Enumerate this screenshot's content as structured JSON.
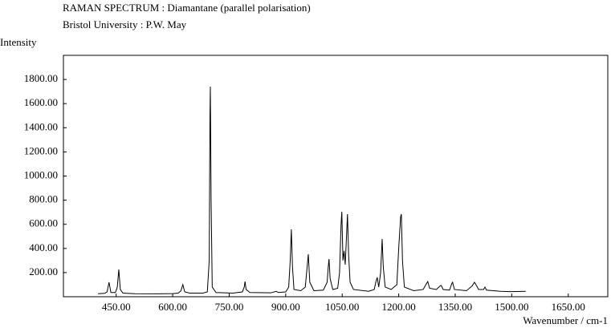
{
  "chart_data": {
    "type": "line",
    "title": "RAMAN SPECTRUM : Diamantane (parallel polarisation)",
    "subtitle": "Bristol University : P.W. May",
    "y_label": "Intensity",
    "x_label": "Wavenumber / cm-1",
    "xlim": [
      310,
      1755
    ],
    "ylim": [
      0,
      2000
    ],
    "xticks": [
      {
        "value": 450,
        "label": "450.00"
      },
      {
        "value": 600,
        "label": "600.00"
      },
      {
        "value": 750,
        "label": "750.00"
      },
      {
        "value": 900,
        "label": "900.00"
      },
      {
        "value": 1050,
        "label": "1050.00"
      },
      {
        "value": 1200,
        "label": "1200.00"
      },
      {
        "value": 1350,
        "label": "1350.00"
      },
      {
        "value": 1500,
        "label": "1500.00"
      },
      {
        "value": 1650,
        "label": "1650.00"
      }
    ],
    "yticks": [
      {
        "value": 200,
        "label": "200.00"
      },
      {
        "value": 400,
        "label": "400.00"
      },
      {
        "value": 600,
        "label": "600.00"
      },
      {
        "value": 800,
        "label": "800.00"
      },
      {
        "value": 1000,
        "label": "1000.00"
      },
      {
        "value": 1200,
        "label": "1200.00"
      },
      {
        "value": 1400,
        "label": "1400.00"
      },
      {
        "value": 1600,
        "label": "1600.00"
      },
      {
        "value": 1800,
        "label": "1800.00"
      }
    ],
    "grid": false,
    "series": [
      {
        "color": "#000000",
        "x": [
          402,
          420,
          426,
          431,
          436,
          448,
          453,
          457,
          461,
          468,
          500,
          560,
          600,
          615,
          622,
          627,
          632,
          645,
          680,
          692,
          697,
          699,
          700,
          702,
          705,
          715,
          760,
          785,
          790,
          792,
          795,
          805,
          860,
          875,
          880,
          900,
          908,
          912,
          915,
          918,
          922,
          940,
          952,
          957,
          960,
          964,
          975,
          1000,
          1010,
          1013,
          1015,
          1018,
          1025,
          1038,
          1043,
          1047,
          1049,
          1052,
          1055,
          1058,
          1060,
          1064,
          1067,
          1071,
          1080,
          1120,
          1135,
          1140,
          1143,
          1147,
          1152,
          1156,
          1159,
          1164,
          1180,
          1195,
          1200,
          1205,
          1207,
          1210,
          1215,
          1240,
          1265,
          1272,
          1277,
          1282,
          1300,
          1310,
          1313,
          1318,
          1335,
          1341,
          1343,
          1348,
          1380,
          1395,
          1401,
          1407,
          1412,
          1425,
          1429,
          1433,
          1470,
          1500,
          1537
        ],
        "values": [
          25,
          28,
          40,
          120,
          35,
          35,
          80,
          226,
          60,
          30,
          25,
          24,
          26,
          30,
          50,
          100,
          40,
          30,
          30,
          40,
          300,
          1500,
          1741,
          800,
          80,
          35,
          30,
          40,
          80,
          126,
          60,
          35,
          32,
          45,
          35,
          40,
          80,
          300,
          558,
          250,
          60,
          50,
          80,
          250,
          352,
          120,
          50,
          55,
          120,
          250,
          312,
          150,
          60,
          70,
          200,
          600,
          704,
          300,
          380,
          266,
          400,
          684,
          350,
          120,
          60,
          45,
          60,
          130,
          160,
          80,
          200,
          478,
          250,
          80,
          60,
          100,
          400,
          660,
          684,
          300,
          80,
          50,
          60,
          100,
          126,
          70,
          60,
          90,
          93,
          60,
          55,
          110,
          120,
          60,
          50,
          90,
          120,
          90,
          60,
          60,
          80,
          55,
          45,
          42,
          45
        ]
      }
    ]
  }
}
